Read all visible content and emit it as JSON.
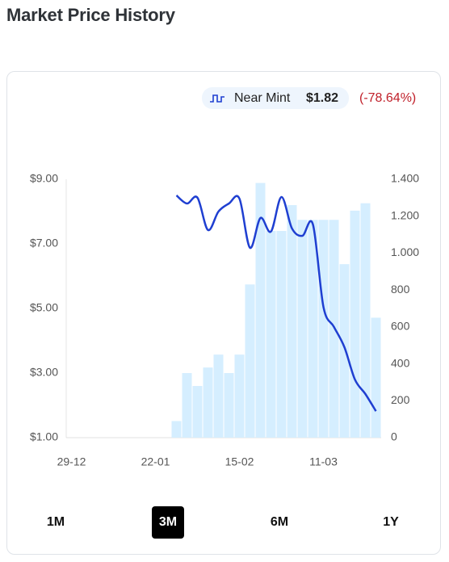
{
  "chart_data": {
    "type": "combo",
    "title": "Market Price History",
    "legend_value": "$1.82",
    "legend_change": "(-78.64%)",
    "categories": [
      "29-12",
      null,
      null,
      null,
      null,
      null,
      null,
      null,
      "22-01",
      null,
      null,
      null,
      null,
      null,
      null,
      null,
      "15-02",
      null,
      null,
      null,
      null,
      null,
      null,
      null,
      "11-03",
      null,
      null,
      null,
      null,
      null
    ],
    "series": [
      {
        "name": "Near Mint",
        "type": "line",
        "color": "#1f3fd1",
        "axis": "y",
        "values": [
          null,
          null,
          null,
          null,
          null,
          null,
          null,
          null,
          null,
          null,
          8.5,
          8.25,
          8.43,
          7.43,
          8.0,
          8.25,
          8.4,
          6.88,
          7.8,
          7.38,
          8.45,
          7.48,
          7.25,
          7.6,
          5.05,
          4.43,
          3.8,
          2.8,
          2.35,
          1.82
        ]
      },
      {
        "type": "bar",
        "color": "#d5eeff",
        "axis": "y2",
        "values": [
          null,
          null,
          null,
          null,
          null,
          null,
          null,
          null,
          null,
          null,
          90,
          350,
          280,
          380,
          450,
          350,
          450,
          830,
          1380,
          1120,
          1120,
          1260,
          1180,
          1180,
          1180,
          1180,
          940,
          1230,
          1270,
          650
        ]
      }
    ],
    "ylim": [
      1,
      9
    ],
    "yticks": [
      {
        "value": 1,
        "label": "$1.00"
      },
      {
        "value": 3,
        "label": "$3.00"
      },
      {
        "value": 5,
        "label": "$5.00"
      },
      {
        "value": 7,
        "label": "$7.00"
      },
      {
        "value": 9,
        "label": "$9.00"
      }
    ],
    "y2lim": [
      0,
      1400
    ],
    "y2ticks": [
      0,
      200,
      400,
      600,
      800,
      {
        "value": 1000,
        "label": "1.000"
      },
      {
        "value": 1200,
        "label": "1.200"
      },
      {
        "value": 1400,
        "label": "1.400"
      }
    ]
  },
  "ranges": [
    {
      "label": "1M",
      "selected": false
    },
    {
      "label": "3M",
      "selected": true
    },
    {
      "label": "6M",
      "selected": false
    },
    {
      "label": "1Y",
      "selected": false
    }
  ]
}
